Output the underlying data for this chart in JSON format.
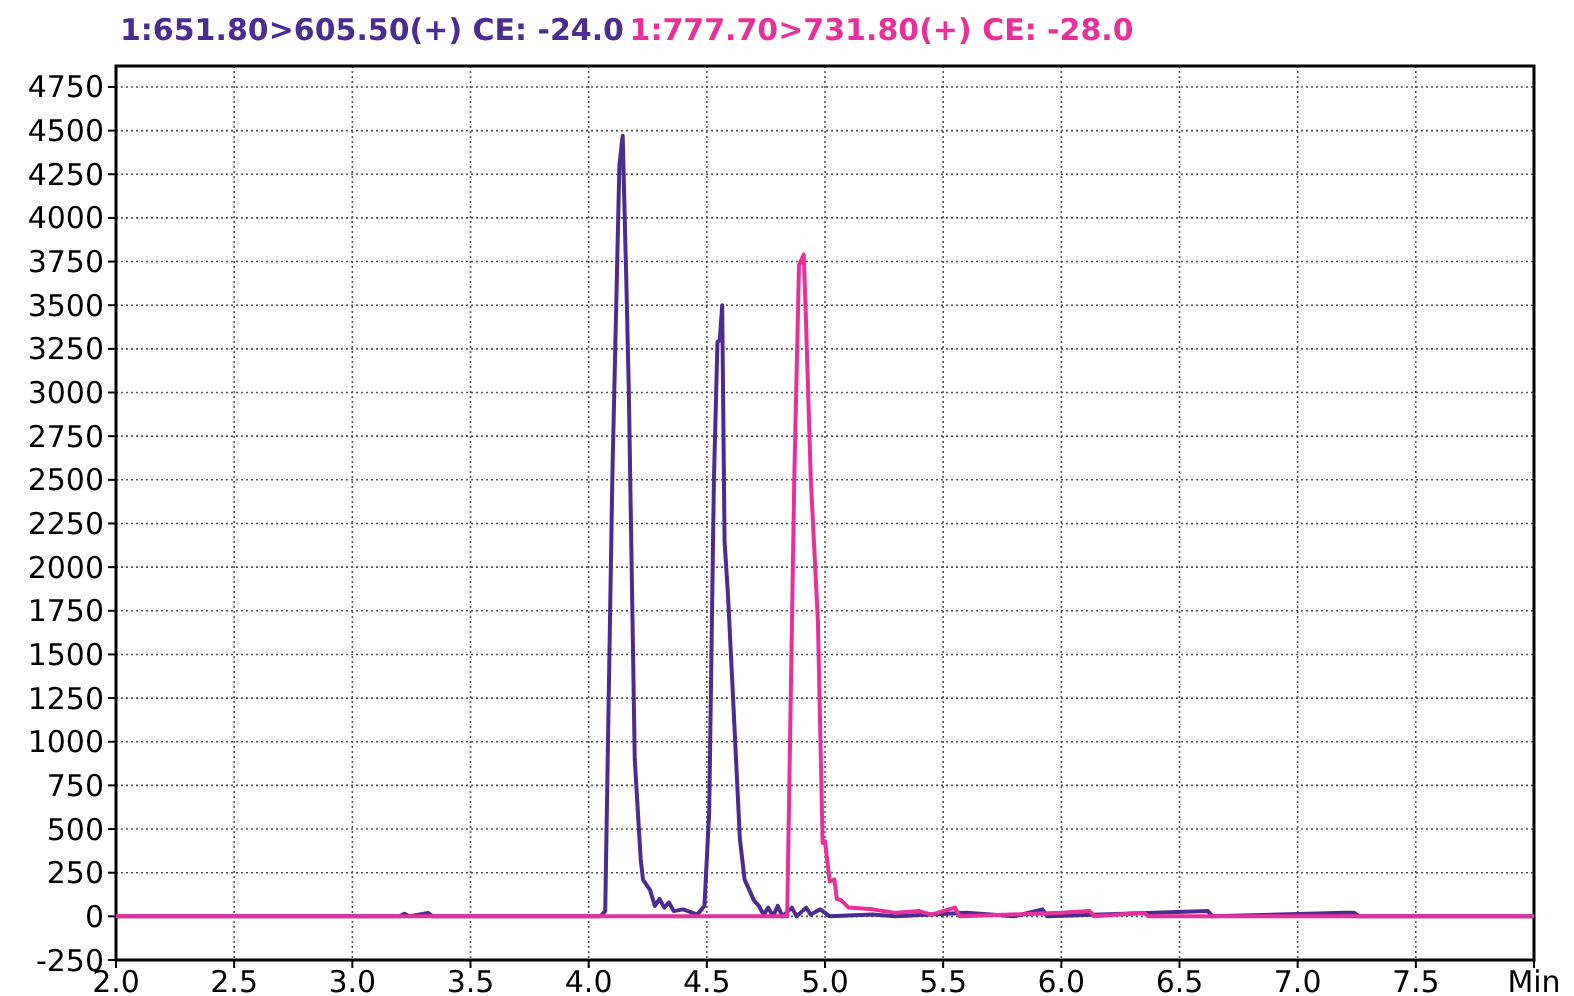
{
  "chart_data": {
    "type": "line",
    "xlim": [
      2,
      8
    ],
    "ylim": [
      -250,
      4870
    ],
    "xticks": [
      {
        "value": 2,
        "label": "2.0"
      },
      {
        "value": 2.5,
        "label": "2.5"
      },
      {
        "value": 3,
        "label": "3.0"
      },
      {
        "value": 3.5,
        "label": "3.5"
      },
      {
        "value": 4,
        "label": "4.0"
      },
      {
        "value": 4.5,
        "label": "4.5"
      },
      {
        "value": 5,
        "label": "5.0"
      },
      {
        "value": 5.5,
        "label": "5.5"
      },
      {
        "value": 6,
        "label": "6.0"
      },
      {
        "value": 6.5,
        "label": "6.5"
      },
      {
        "value": 7,
        "label": "7.0"
      },
      {
        "value": 7.5,
        "label": "7.5"
      },
      {
        "value": 8,
        "label": "Min"
      }
    ],
    "yticks": [
      -250,
      0,
      250,
      500,
      750,
      1000,
      1250,
      1500,
      1750,
      2000,
      2250,
      2500,
      2750,
      3000,
      3250,
      3500,
      3750,
      4000,
      4250,
      4500,
      4750
    ],
    "grid": true,
    "legend": "top left",
    "marker": "none",
    "line_style": "solid",
    "series": [
      {
        "name": "1:651.80>605.50(+) CE: -24.0",
        "color": "#4b2c91",
        "x": [
          2,
          3.2,
          3.22,
          3.24,
          3.32,
          3.34,
          4.05,
          4.07,
          4.1,
          4.13,
          4.144,
          4.16,
          4.17,
          4.195,
          4.22,
          4.23,
          4.26,
          4.28,
          4.3,
          4.32,
          4.34,
          4.36,
          4.4,
          4.46,
          4.49,
          4.51,
          4.53,
          4.545,
          4.555,
          4.565,
          4.575,
          4.59,
          4.62,
          4.64,
          4.66,
          4.7,
          4.72,
          4.74,
          4.76,
          4.78,
          4.8,
          4.82,
          4.86,
          4.88,
          4.92,
          4.94,
          4.98,
          5.02,
          5.2,
          5.3,
          5.6,
          5.8,
          5.92,
          5.94,
          6.62,
          6.64,
          7.2,
          7.24,
          7.26,
          8
        ],
        "values": [
          0,
          0,
          15,
          0,
          20,
          0,
          0,
          30,
          2500,
          4300,
          4470,
          3600,
          3000,
          900,
          330,
          210,
          150,
          60,
          100,
          50,
          80,
          30,
          40,
          10,
          60,
          600,
          2500,
          3290,
          3300,
          3500,
          2150,
          1830,
          1000,
          440,
          210,
          90,
          60,
          10,
          50,
          0,
          60,
          0,
          50,
          0,
          50,
          10,
          40,
          0,
          10,
          0,
          20,
          0,
          40,
          0,
          30,
          0,
          20,
          20,
          0,
          0
        ]
      },
      {
        "name": "1:777.70>731.80(+) CE: -28.0",
        "color": "#e8309a",
        "x": [
          2,
          4.82,
          4.84,
          4.87,
          4.89,
          4.91,
          4.92,
          4.94,
          4.97,
          4.99,
          5,
          5.02,
          5.04,
          5.05,
          5.07,
          5.1,
          5.2,
          5.3,
          5.4,
          5.45,
          5.55,
          5.57,
          6,
          6.12,
          6.14,
          6.35,
          6.37,
          8
        ],
        "values": [
          0,
          0,
          0,
          2500,
          3730,
          3790,
          3390,
          2500,
          1690,
          420,
          430,
          200,
          210,
          100,
          90,
          50,
          40,
          20,
          30,
          10,
          50,
          0,
          20,
          30,
          0,
          20,
          0,
          0
        ]
      }
    ]
  }
}
